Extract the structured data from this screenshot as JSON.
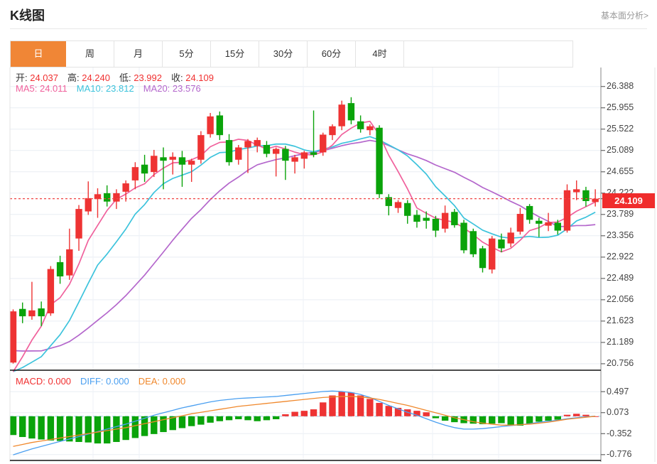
{
  "header": {
    "title": "K线图",
    "link": "基本面分析>"
  },
  "tabs": [
    {
      "label": "日",
      "active": true
    },
    {
      "label": "周",
      "active": false
    },
    {
      "label": "月",
      "active": false
    },
    {
      "label": "5分",
      "active": false
    },
    {
      "label": "15分",
      "active": false
    },
    {
      "label": "30分",
      "active": false
    },
    {
      "label": "60分",
      "active": false
    },
    {
      "label": "4时",
      "active": false
    }
  ],
  "legend": {
    "ohlc": [
      {
        "label": "开:",
        "value": "24.037"
      },
      {
        "label": "高:",
        "value": "24.240"
      },
      {
        "label": "低:",
        "value": "23.992"
      },
      {
        "label": "收:",
        "value": "24.109"
      }
    ],
    "ma": [
      {
        "label": "MA5:",
        "value": "24.011",
        "color": "#f0619c"
      },
      {
        "label": "MA10:",
        "value": "23.812",
        "color": "#3cc3dc"
      },
      {
        "label": "MA20:",
        "value": "23.576",
        "color": "#b467cc"
      }
    ],
    "macd": [
      {
        "label": "MACD:",
        "value": "0.000",
        "color": "#f03030"
      },
      {
        "label": "DIFF:",
        "value": "0.000",
        "color": "#4a9ff0"
      },
      {
        "label": "DEA:",
        "value": "0.000",
        "color": "#f0882c"
      }
    ]
  },
  "axis": {
    "main_ticks": [
      "26.388",
      "25.955",
      "25.522",
      "25.089",
      "24.655",
      "24.222",
      "23.789",
      "23.356",
      "22.922",
      "22.489",
      "22.056",
      "21.623",
      "21.189",
      "20.756"
    ],
    "macd_ticks": [
      "0.497",
      "0.073",
      "-0.352",
      "-0.776"
    ],
    "badge": "24.109"
  },
  "colors": {
    "up": "#ee3333",
    "down": "#0aa30a",
    "ma5": "#f0619c",
    "ma10": "#3cc3dc",
    "ma20": "#b467cc",
    "diff": "#4a9ff0",
    "dea": "#f0882c",
    "accent": "#f08636",
    "badge_bg": "#f02c2c",
    "price_line": "#f04545",
    "grid": "#e9eef4",
    "grid_v": "#eef2f7",
    "zero_dash": "#b5daf2",
    "axis_line": "#999999",
    "panel_bottom": "#111111",
    "value_red": "#f03030"
  },
  "chart_data": {
    "type": "candlestick",
    "title": "K线图 日K + MACD",
    "legend_position": "top-left",
    "grid": true,
    "ohlc_current": {
      "open": 24.037,
      "high": 24.24,
      "low": 23.992,
      "close": 24.109
    },
    "ma_current": {
      "ma5": 24.011,
      "ma10": 23.812,
      "ma20": 23.576
    },
    "price_line": 24.109,
    "y_axis_ticks": [
      26.388,
      25.955,
      25.522,
      25.089,
      24.655,
      24.222,
      23.789,
      23.356,
      22.922,
      22.489,
      22.056,
      21.623,
      21.189,
      20.756
    ],
    "candles_ohlc": [
      [
        20.78,
        21.86,
        20.76,
        21.82
      ],
      [
        21.87,
        22.0,
        21.58,
        21.72
      ],
      [
        21.72,
        22.42,
        21.65,
        21.84
      ],
      [
        21.88,
        22.02,
        21.52,
        21.72
      ],
      [
        21.78,
        22.74,
        21.73,
        22.68
      ],
      [
        22.82,
        22.95,
        22.38,
        22.53
      ],
      [
        22.55,
        23.5,
        22.46,
        23.08
      ],
      [
        23.3,
        23.98,
        23.05,
        23.9
      ],
      [
        23.85,
        24.46,
        23.78,
        24.12
      ],
      [
        24.1,
        24.32,
        23.72,
        24.2
      ],
      [
        24.22,
        24.38,
        23.95,
        24.05
      ],
      [
        24.05,
        24.3,
        23.9,
        24.22
      ],
      [
        24.25,
        24.48,
        24.05,
        24.42
      ],
      [
        24.48,
        24.85,
        24.3,
        24.75
      ],
      [
        24.8,
        25.0,
        24.45,
        24.62
      ],
      [
        24.65,
        25.1,
        24.55,
        24.98
      ],
      [
        24.95,
        25.15,
        24.3,
        24.88
      ],
      [
        24.9,
        25.05,
        24.6,
        24.96
      ],
      [
        24.95,
        25.08,
        24.35,
        24.8
      ],
      [
        24.8,
        24.92,
        24.45,
        24.88
      ],
      [
        24.9,
        25.48,
        24.82,
        25.4
      ],
      [
        25.42,
        25.85,
        25.35,
        25.78
      ],
      [
        25.8,
        25.88,
        25.3,
        25.4
      ],
      [
        25.3,
        25.42,
        24.78,
        24.85
      ],
      [
        24.9,
        25.2,
        24.8,
        25.15
      ],
      [
        25.15,
        25.32,
        24.63,
        25.28
      ],
      [
        25.18,
        25.35,
        25.05,
        25.3
      ],
      [
        25.2,
        25.28,
        24.95,
        25.02
      ],
      [
        25.02,
        25.15,
        24.56,
        25.12
      ],
      [
        25.12,
        25.18,
        24.49,
        24.88
      ],
      [
        24.86,
        25.0,
        24.62,
        24.95
      ],
      [
        24.92,
        25.08,
        24.72,
        25.05
      ],
      [
        25.05,
        25.9,
        24.95,
        25.0
      ],
      [
        25.05,
        25.45,
        24.98,
        25.41
      ],
      [
        25.4,
        25.62,
        25.3,
        25.58
      ],
      [
        25.58,
        26.1,
        25.5,
        26.02
      ],
      [
        26.05,
        26.17,
        25.62,
        25.7
      ],
      [
        25.68,
        25.8,
        25.45,
        25.52
      ],
      [
        25.5,
        25.62,
        25.4,
        25.58
      ],
      [
        25.55,
        25.6,
        24.12,
        24.2
      ],
      [
        24.14,
        24.2,
        23.77,
        23.96
      ],
      [
        23.92,
        24.08,
        23.82,
        24.04
      ],
      [
        24.02,
        24.08,
        23.6,
        23.76
      ],
      [
        23.78,
        23.88,
        23.52,
        23.64
      ],
      [
        23.72,
        23.85,
        23.5,
        23.66
      ],
      [
        23.7,
        23.76,
        23.33,
        23.46
      ],
      [
        23.5,
        23.97,
        23.42,
        23.82
      ],
      [
        23.84,
        23.9,
        23.52,
        23.57
      ],
      [
        23.62,
        23.68,
        23.0,
        23.06
      ],
      [
        23.45,
        23.5,
        22.92,
        22.98
      ],
      [
        23.1,
        23.15,
        22.61,
        22.7
      ],
      [
        22.67,
        23.35,
        22.59,
        23.3
      ],
      [
        23.28,
        23.4,
        23.02,
        23.1
      ],
      [
        23.2,
        23.52,
        23.12,
        23.42
      ],
      [
        23.44,
        23.92,
        23.38,
        23.8
      ],
      [
        23.96,
        24.0,
        23.6,
        23.68
      ],
      [
        23.66,
        23.72,
        23.33,
        23.6
      ],
      [
        23.56,
        23.82,
        23.45,
        23.63
      ],
      [
        23.62,
        23.68,
        23.38,
        23.46
      ],
      [
        23.46,
        24.4,
        23.42,
        24.28
      ],
      [
        24.24,
        24.48,
        24.08,
        24.3
      ],
      [
        24.28,
        24.35,
        23.95,
        24.06
      ],
      [
        24.04,
        24.3,
        23.95,
        24.109
      ]
    ],
    "prehistory_closes": [
      21.9,
      21.8,
      21.7,
      21.6,
      21.5,
      21.4,
      21.3,
      21.2,
      21.1,
      21.0,
      20.9,
      20.75,
      20.6,
      20.45,
      20.3,
      20.2,
      20.15,
      20.3,
      20.5
    ],
    "macd": {
      "current": {
        "macd": 0.0,
        "diff": 0.0,
        "dea": 0.0
      },
      "y_axis_ticks": [
        0.497,
        0.073,
        -0.352,
        -0.776
      ],
      "hist": [
        -0.38,
        -0.42,
        -0.45,
        -0.47,
        -0.49,
        -0.5,
        -0.51,
        -0.52,
        -0.53,
        -0.55,
        -0.55,
        -0.52,
        -0.48,
        -0.44,
        -0.4,
        -0.36,
        -0.32,
        -0.28,
        -0.24,
        -0.2,
        -0.17,
        -0.13,
        -0.1,
        -0.08,
        -0.06,
        -0.08,
        -0.1,
        -0.08,
        -0.06,
        0.04,
        0.09,
        0.11,
        0.14,
        0.28,
        0.42,
        0.5,
        0.48,
        0.42,
        0.35,
        0.27,
        0.21,
        0.17,
        0.14,
        0.11,
        0.08,
        -0.04,
        -0.09,
        -0.12,
        -0.14,
        -0.15,
        -0.16,
        -0.15,
        -0.14,
        -0.18,
        -0.19,
        -0.15,
        -0.11,
        -0.09,
        -0.07,
        0.03,
        0.05,
        0.03,
        0.0
      ],
      "diff": [
        -0.78,
        -0.72,
        -0.66,
        -0.61,
        -0.56,
        -0.51,
        -0.46,
        -0.41,
        -0.36,
        -0.31,
        -0.26,
        -0.21,
        -0.16,
        -0.1,
        -0.04,
        0.02,
        0.07,
        0.12,
        0.17,
        0.21,
        0.25,
        0.29,
        0.32,
        0.34,
        0.36,
        0.37,
        0.38,
        0.39,
        0.4,
        0.42,
        0.44,
        0.46,
        0.48,
        0.5,
        0.51,
        0.5,
        0.48,
        0.44,
        0.38,
        0.3,
        0.22,
        0.15,
        0.08,
        0.02,
        -0.05,
        -0.12,
        -0.18,
        -0.23,
        -0.26,
        -0.26,
        -0.25,
        -0.23,
        -0.21,
        -0.19,
        -0.17,
        -0.15,
        -0.12,
        -0.1,
        -0.08,
        -0.05,
        -0.03,
        -0.01,
        0.0
      ],
      "dea": [
        -0.61,
        -0.57,
        -0.53,
        -0.5,
        -0.47,
        -0.44,
        -0.41,
        -0.38,
        -0.35,
        -0.32,
        -0.29,
        -0.26,
        -0.23,
        -0.19,
        -0.15,
        -0.11,
        -0.07,
        -0.03,
        0.01,
        0.05,
        0.08,
        0.11,
        0.14,
        0.17,
        0.2,
        0.22,
        0.24,
        0.26,
        0.28,
        0.3,
        0.32,
        0.34,
        0.36,
        0.38,
        0.39,
        0.4,
        0.4,
        0.39,
        0.37,
        0.34,
        0.3,
        0.26,
        0.22,
        0.17,
        0.12,
        0.07,
        0.02,
        -0.03,
        -0.07,
        -0.11,
        -0.14,
        -0.16,
        -0.18,
        -0.18,
        -0.17,
        -0.16,
        -0.14,
        -0.12,
        -0.09,
        -0.06,
        -0.04,
        -0.02,
        0.0
      ]
    },
    "grid_vertical_x": [
      131,
      196,
      427,
      609,
      702
    ]
  }
}
